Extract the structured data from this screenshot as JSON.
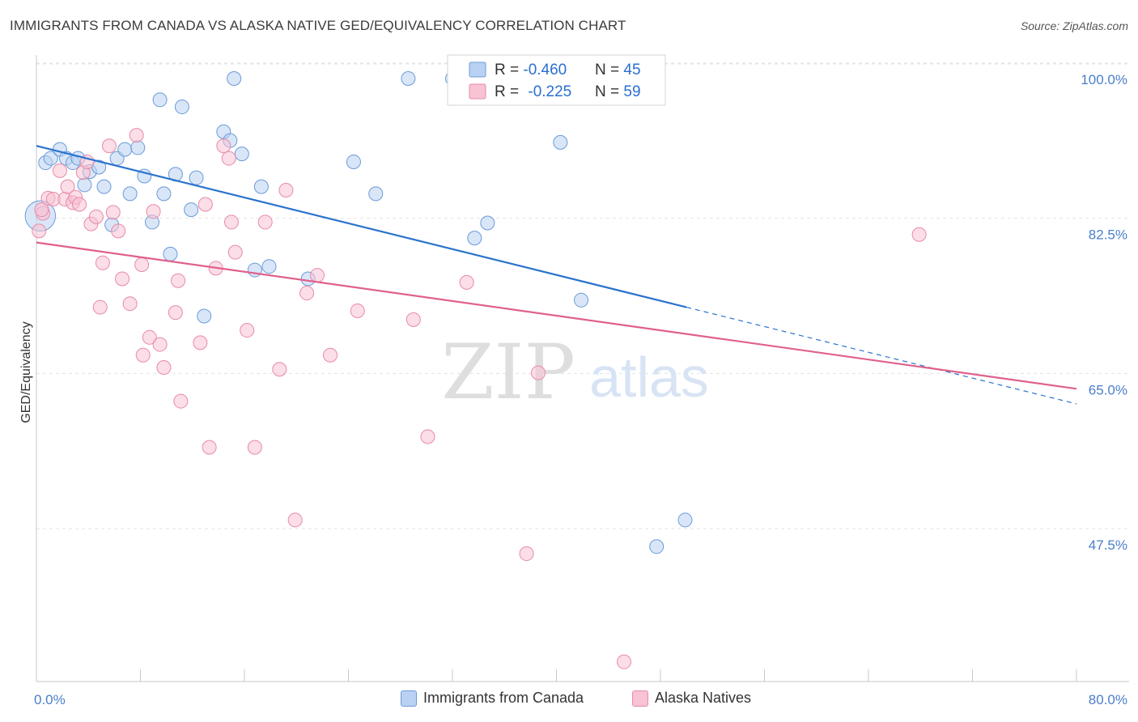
{
  "title": "IMMIGRANTS FROM CANADA VS ALASKA NATIVE GED/EQUIVALENCY CORRELATION CHART",
  "source": "Source: ZipAtlas.com",
  "watermark": {
    "zip": "ZIP",
    "atlas": "atlas"
  },
  "colors": {
    "blue_fill": "#b9d1f3",
    "blue_stroke": "#6b9bd8",
    "blue_line": "#2a73cc",
    "pink_fill": "#f8c3d3",
    "pink_stroke": "#e88aa8",
    "pink_line": "#e0608c",
    "axis_text": "#4a7fcb",
    "grid": "#e3e3e3"
  },
  "legend": {
    "rows": [
      {
        "r_label": "R = ",
        "r_value": "-0.460",
        "n_label": "N = ",
        "n_value": "45"
      },
      {
        "r_label": "R = ",
        "r_value": "-0.225",
        "n_label": "N = ",
        "n_value": "59"
      }
    ]
  },
  "bottom_legend": [
    "Immigrants from Canada",
    "Alaska Natives"
  ],
  "chart_data": {
    "type": "scatter",
    "title": "IMMIGRANTS FROM CANADA VS ALASKA NATIVE GED/EQUIVALENCY CORRELATION CHART",
    "xlabel": "",
    "ylabel": "GED/Equivalency",
    "xlim": [
      0,
      80
    ],
    "ylim": [
      32,
      102
    ],
    "x_tick_labels": [
      "0.0%",
      "80.0%"
    ],
    "y_ticks": [
      47.5,
      65.0,
      82.5,
      100.0
    ],
    "y_tick_labels": [
      "47.5%",
      "65.0%",
      "82.5%",
      "100.0%"
    ],
    "grid": true,
    "legend_position": "top-center",
    "series": [
      {
        "name": "Immigrants from Canada",
        "r": -0.46,
        "n": 45,
        "trend": {
          "x0": 0,
          "y0": 92.4,
          "x1": 50,
          "y1": 74.2,
          "dashed_to_x": 80,
          "dashed_to_y": 63.3
        },
        "points": [
          [
            0.3,
            84.5,
            2.2
          ],
          [
            0.7,
            90.5,
            1
          ],
          [
            1.1,
            91.0,
            1
          ],
          [
            1.8,
            92.0,
            1
          ],
          [
            2.3,
            91.0,
            1
          ],
          [
            2.8,
            90.5,
            1
          ],
          [
            3.2,
            91.0,
            1
          ],
          [
            3.7,
            88.0,
            1
          ],
          [
            4.1,
            89.5,
            1
          ],
          [
            4.8,
            90.0,
            1
          ],
          [
            5.2,
            87.8,
            1
          ],
          [
            5.8,
            83.5,
            1
          ],
          [
            6.2,
            91.0,
            1
          ],
          [
            6.8,
            92.0,
            1
          ],
          [
            7.2,
            87.0,
            1
          ],
          [
            7.8,
            92.2,
            1
          ],
          [
            8.3,
            89.0,
            1
          ],
          [
            8.9,
            83.8,
            1
          ],
          [
            9.5,
            97.6,
            1
          ],
          [
            9.8,
            87.0,
            1
          ],
          [
            10.3,
            80.2,
            1
          ],
          [
            10.7,
            89.2,
            1
          ],
          [
            11.2,
            96.8,
            1
          ],
          [
            11.9,
            85.2,
            1
          ],
          [
            12.3,
            88.8,
            1
          ],
          [
            12.9,
            73.2,
            1
          ],
          [
            14.4,
            94.0,
            1
          ],
          [
            14.9,
            93.0,
            1
          ],
          [
            15.2,
            100.0,
            1
          ],
          [
            15.8,
            91.5,
            1
          ],
          [
            16.8,
            78.4,
            1
          ],
          [
            17.3,
            87.8,
            1
          ],
          [
            17.9,
            78.8,
            1
          ],
          [
            20.9,
            77.4,
            1
          ],
          [
            24.4,
            90.6,
            1
          ],
          [
            26.1,
            87.0,
            1
          ],
          [
            28.6,
            100.0,
            1
          ],
          [
            32.0,
            100.0,
            1
          ],
          [
            33.0,
            100.0,
            1
          ],
          [
            33.7,
            82.0,
            1
          ],
          [
            34.7,
            83.7,
            1
          ],
          [
            40.3,
            92.8,
            1
          ],
          [
            41.9,
            75.0,
            1
          ],
          [
            47.7,
            47.2,
            1
          ],
          [
            49.9,
            50.2,
            1
          ]
        ]
      },
      {
        "name": "Alaska Natives",
        "r": -0.225,
        "n": 59,
        "trend": {
          "x0": 0,
          "y0": 81.5,
          "x1": 80,
          "y1": 65.0
        },
        "points": [
          [
            0.2,
            82.8,
            1
          ],
          [
            0.5,
            84.8,
            1
          ],
          [
            0.9,
            86.5,
            1
          ],
          [
            1.3,
            86.4,
            1
          ],
          [
            1.8,
            89.6,
            1
          ],
          [
            2.2,
            86.4,
            1
          ],
          [
            2.4,
            87.8,
            1
          ],
          [
            2.8,
            86.0,
            1
          ],
          [
            3.0,
            86.6,
            1
          ],
          [
            3.3,
            85.8,
            1
          ],
          [
            3.6,
            89.4,
            1
          ],
          [
            3.9,
            90.6,
            1
          ],
          [
            4.2,
            83.6,
            1
          ],
          [
            4.6,
            84.4,
            1
          ],
          [
            4.9,
            74.2,
            1
          ],
          [
            5.1,
            79.2,
            1
          ],
          [
            5.6,
            92.4,
            1
          ],
          [
            5.9,
            84.9,
            1
          ],
          [
            6.3,
            82.8,
            1
          ],
          [
            6.6,
            77.4,
            1
          ],
          [
            7.2,
            74.6,
            1
          ],
          [
            7.7,
            93.6,
            1
          ],
          [
            8.1,
            79.0,
            1
          ],
          [
            8.2,
            68.8,
            1
          ],
          [
            8.7,
            70.8,
            1
          ],
          [
            9.0,
            85.0,
            1
          ],
          [
            9.5,
            70.0,
            1
          ],
          [
            9.8,
            67.4,
            1
          ],
          [
            10.7,
            73.6,
            1
          ],
          [
            10.9,
            77.2,
            1
          ],
          [
            11.1,
            63.6,
            1
          ],
          [
            12.6,
            70.2,
            1
          ],
          [
            13.0,
            85.8,
            1
          ],
          [
            13.3,
            58.4,
            1
          ],
          [
            13.8,
            78.6,
            1
          ],
          [
            14.4,
            92.4,
            1
          ],
          [
            14.8,
            91.0,
            1
          ],
          [
            15.0,
            83.8,
            1
          ],
          [
            15.3,
            80.4,
            1
          ],
          [
            16.2,
            71.6,
            1
          ],
          [
            16.8,
            58.4,
            1
          ],
          [
            17.6,
            83.8,
            1
          ],
          [
            18.7,
            67.2,
            1
          ],
          [
            19.2,
            87.4,
            1
          ],
          [
            19.9,
            50.2,
            1
          ],
          [
            20.8,
            75.8,
            1
          ],
          [
            21.6,
            77.8,
            1
          ],
          [
            22.6,
            68.8,
            1
          ],
          [
            24.7,
            73.8,
            1
          ],
          [
            29.0,
            72.8,
            1
          ],
          [
            30.1,
            59.6,
            1
          ],
          [
            33.1,
            77.0,
            1
          ],
          [
            37.7,
            46.4,
            1
          ],
          [
            38.6,
            66.8,
            1
          ],
          [
            41.6,
            100.0,
            1
          ],
          [
            43.9,
            100.0,
            1
          ],
          [
            45.2,
            34.2,
            1
          ],
          [
            67.9,
            82.4,
            1
          ],
          [
            0.4,
            85.2,
            1
          ]
        ]
      }
    ]
  }
}
